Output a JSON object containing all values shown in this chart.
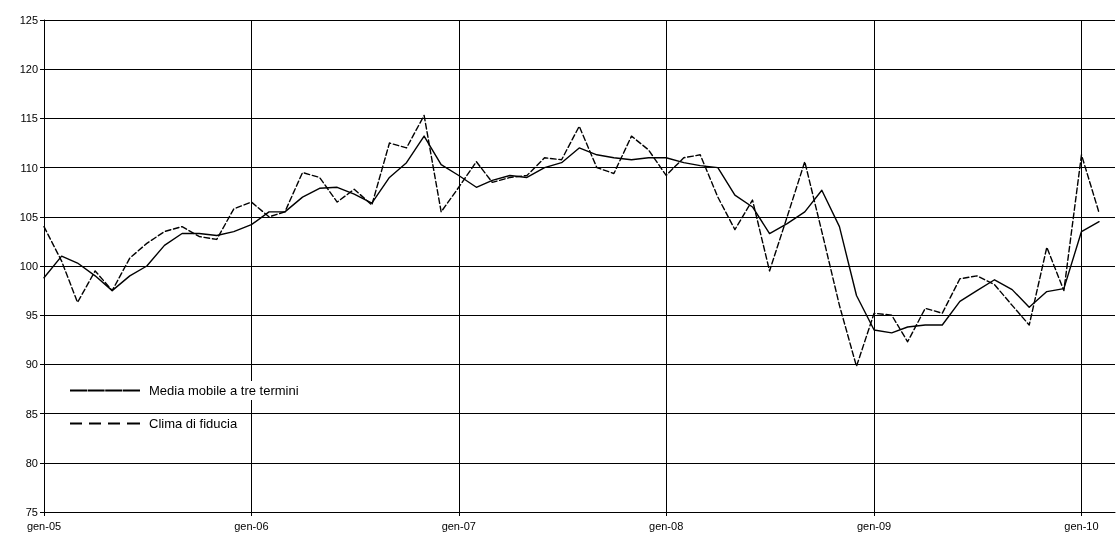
{
  "chart_data": {
    "type": "line",
    "x": [
      "2005-01",
      "2005-02",
      "2005-03",
      "2005-04",
      "2005-05",
      "2005-06",
      "2005-07",
      "2005-08",
      "2005-09",
      "2005-10",
      "2005-11",
      "2005-12",
      "2006-01",
      "2006-02",
      "2006-03",
      "2006-04",
      "2006-05",
      "2006-06",
      "2006-07",
      "2006-08",
      "2006-09",
      "2006-10",
      "2006-11",
      "2006-12",
      "2007-01",
      "2007-02",
      "2007-03",
      "2007-04",
      "2007-05",
      "2007-06",
      "2007-07",
      "2007-08",
      "2007-09",
      "2007-10",
      "2007-11",
      "2007-12",
      "2008-01",
      "2008-02",
      "2008-03",
      "2008-04",
      "2008-05",
      "2008-06",
      "2008-07",
      "2008-08",
      "2008-09",
      "2008-10",
      "2008-11",
      "2008-12",
      "2009-01",
      "2009-02",
      "2009-03",
      "2009-04",
      "2009-05",
      "2009-06",
      "2009-07",
      "2009-08",
      "2009-09",
      "2009-10",
      "2009-11",
      "2009-12",
      "2010-01",
      "2010-02"
    ],
    "series": [
      {
        "name": "Media mobile a tre termini",
        "color": "#000000",
        "line_style": "solid",
        "values": [
          98.8,
          101,
          100.3,
          99,
          97.5,
          99,
          100,
          102.1,
          103.3,
          103.3,
          103.1,
          103.5,
          104.2,
          105.5,
          105.5,
          107,
          107.9,
          108,
          107.3,
          106.4,
          109,
          110.5,
          113.2,
          110.3,
          109.2,
          108,
          108.7,
          109.2,
          109,
          110,
          110.5,
          112,
          111.3,
          111,
          110.8,
          111,
          111,
          110.5,
          110.2,
          110,
          107.2,
          106,
          103.3,
          104.3,
          105.5,
          107.7,
          104,
          97,
          93.5,
          93.2,
          93.8,
          94,
          94,
          96.4,
          97.5,
          98.6,
          97.6,
          95.8,
          97.4,
          97.7,
          103.5,
          104.5
        ]
      },
      {
        "name": "Clima di fiducia",
        "color": "#000000",
        "line_style": "dashed",
        "values": [
          104,
          100.5,
          96.3,
          99.5,
          97.5,
          100.8,
          102.3,
          103.5,
          104,
          103,
          102.7,
          105.8,
          106.5,
          105,
          105.5,
          109.5,
          109,
          106.5,
          107.8,
          106.2,
          112.5,
          112,
          115.3,
          105.5,
          108,
          110.6,
          108.5,
          109,
          109.2,
          111,
          110.8,
          114.2,
          110,
          109.4,
          113.2,
          111.8,
          109.2,
          111,
          111.3,
          107,
          103.7,
          106.7,
          99.5,
          105,
          110.6,
          103.5,
          96,
          89.8,
          95.2,
          95,
          92.3,
          95.7,
          95.2,
          98.7,
          99,
          98.1,
          96,
          94,
          101.9,
          97.5,
          111.3,
          105.4
        ]
      }
    ],
    "xlim": [
      "2005-01",
      "2010-03"
    ],
    "xticks": [
      {
        "value": "2005-01",
        "label": "gen-05"
      },
      {
        "value": "2006-01",
        "label": "gen-06"
      },
      {
        "value": "2007-01",
        "label": "gen-07"
      },
      {
        "value": "2008-01",
        "label": "gen-08"
      },
      {
        "value": "2009-01",
        "label": "gen-09"
      },
      {
        "value": "2010-01",
        "label": "gen-10"
      }
    ],
    "ylim": [
      75,
      125
    ],
    "yticks": [
      75,
      80,
      85,
      90,
      95,
      100,
      105,
      110,
      115,
      120,
      125
    ],
    "grid": true,
    "legend": "bottom left",
    "marker": "none"
  }
}
